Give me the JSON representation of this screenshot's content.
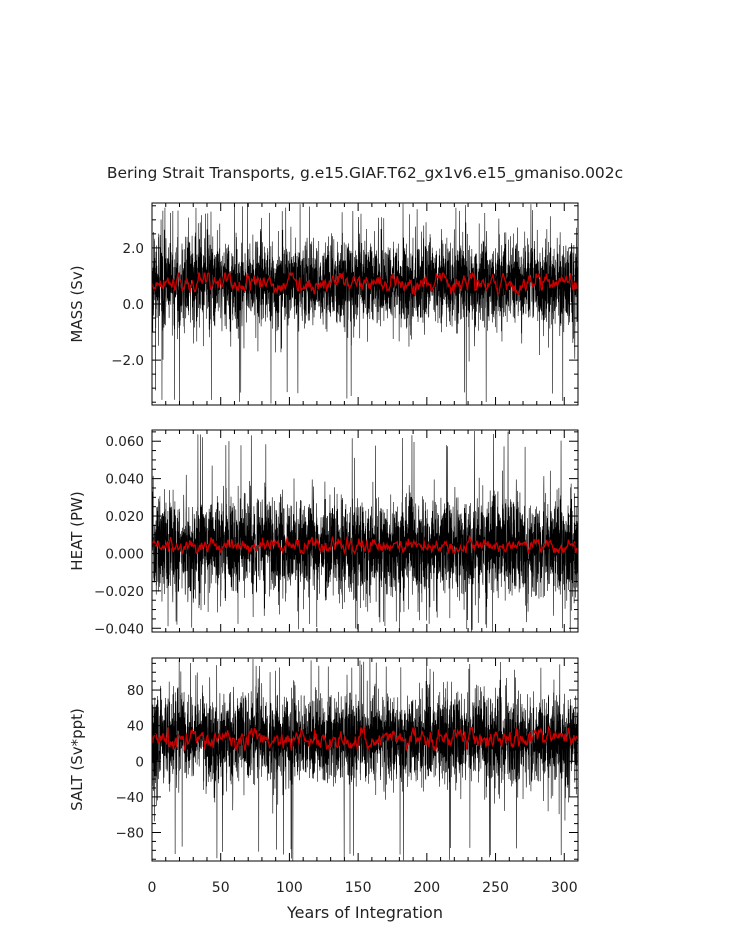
{
  "title": "Bering Strait Transports, g.e15.GIAF.T62_gx1v6.e15_gmaniso.002c",
  "colors": {
    "raw": "#000000",
    "smooth": "#cc0000",
    "axis": "#000000"
  },
  "chart_data": [
    {
      "type": "line",
      "panel": "mass",
      "ylabel": "MASS (Sv)",
      "ylim": [
        -3.6,
        3.6
      ],
      "yticks": [
        2.0,
        0.0,
        -2.0
      ],
      "ytick_labels": [
        "2.0",
        "0.0",
        "−2.0"
      ],
      "xlim": [
        0,
        310
      ],
      "series": [
        {
          "role": "raw-monthly",
          "color": "#000000",
          "mean": 0.75,
          "typical_range": [
            -1.0,
            2.6
          ],
          "extremes": [
            -3.6,
            3.6
          ]
        },
        {
          "role": "smoothed",
          "color": "#cc0000",
          "mean": 0.75,
          "range": [
            0.35,
            1.1
          ]
        }
      ]
    },
    {
      "type": "line",
      "panel": "heat",
      "ylabel": "HEAT (PW)",
      "ylim": [
        -0.042,
        0.066
      ],
      "yticks": [
        0.06,
        0.04,
        0.02,
        0.0,
        -0.02,
        -0.04
      ],
      "ytick_labels": [
        "0.060",
        "0.040",
        "0.020",
        "0.000",
        "−0.020",
        "−0.040"
      ],
      "xlim": [
        0,
        310
      ],
      "series": [
        {
          "role": "raw-monthly",
          "color": "#000000",
          "mean": 0.004,
          "typical_range": [
            -0.02,
            0.04
          ],
          "extremes": [
            -0.042,
            0.066
          ]
        },
        {
          "role": "smoothed",
          "color": "#cc0000",
          "mean": 0.004,
          "range": [
            0.0,
            0.009
          ]
        }
      ]
    },
    {
      "type": "line",
      "panel": "salt",
      "ylabel": "SALT (Sv*ppt)",
      "ylim": [
        -112,
        116
      ],
      "yticks": [
        80,
        40,
        0,
        -40,
        -80
      ],
      "ytick_labels": [
        "80",
        "40",
        "0",
        "−40",
        "−80"
      ],
      "xlim": [
        0,
        310
      ],
      "series": [
        {
          "role": "raw-monthly",
          "color": "#000000",
          "mean": 25,
          "typical_range": [
            -40,
            80
          ],
          "extremes": [
            -112,
            116
          ]
        },
        {
          "role": "smoothed",
          "color": "#cc0000",
          "mean": 25,
          "range": [
            12,
            38
          ]
        }
      ]
    }
  ],
  "xaxis": {
    "label": "Years of Integration",
    "ticks": [
      0,
      50,
      100,
      150,
      200,
      250,
      300
    ],
    "tick_labels": [
      "0",
      "50",
      "100",
      "150",
      "200",
      "250",
      "300"
    ]
  }
}
